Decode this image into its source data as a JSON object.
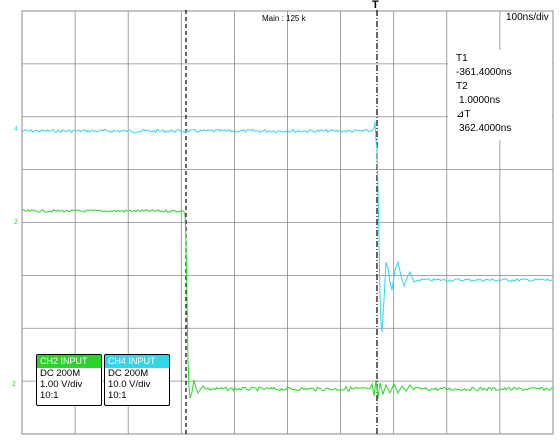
{
  "screen": {
    "main_label": "Main : 125 k",
    "timebase": "100ns/div",
    "trigger_marker": "T"
  },
  "cursors": {
    "t1_label": "T1",
    "t1_value": "-361.4000ns",
    "t2_label": "T2",
    "t2_value": "1.0000ns",
    "dt_label": "⊿T",
    "dt_value": "362.4000ns"
  },
  "channels": [
    {
      "header": "CH2 INPUT",
      "coupling": "DC 200M",
      "scale": "1.00 V/div",
      "probe": "10:1",
      "color": "#2bd42b",
      "marker_top": "2",
      "marker_ground": "2"
    },
    {
      "header": "CH4 INPUT",
      "coupling": "DC 200M",
      "scale": "10.0 V/div",
      "probe": "10:1",
      "color": "#33d6e8",
      "marker_top": "4"
    }
  ],
  "colors": {
    "grid": "#8a8a8a",
    "cursor": "#000000"
  }
}
